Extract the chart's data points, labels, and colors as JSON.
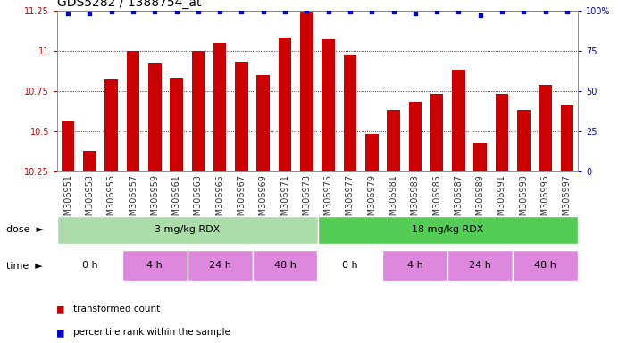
{
  "title": "GDS5282 / 1388754_at",
  "samples": [
    "GSM306951",
    "GSM306953",
    "GSM306955",
    "GSM306957",
    "GSM306959",
    "GSM306961",
    "GSM306963",
    "GSM306965",
    "GSM306967",
    "GSM306969",
    "GSM306971",
    "GSM306973",
    "GSM306975",
    "GSM306977",
    "GSM306979",
    "GSM306981",
    "GSM306983",
    "GSM306985",
    "GSM306987",
    "GSM306989",
    "GSM306991",
    "GSM306993",
    "GSM306995",
    "GSM306997"
  ],
  "bar_values": [
    10.56,
    10.38,
    10.82,
    11.0,
    10.92,
    10.83,
    11.0,
    11.05,
    10.93,
    10.85,
    11.08,
    11.24,
    11.07,
    10.97,
    10.48,
    10.63,
    10.68,
    10.73,
    10.88,
    10.43,
    10.73,
    10.63,
    10.79,
    10.66
  ],
  "percentile_values": [
    98,
    98,
    99,
    99,
    99,
    99,
    99,
    99,
    99,
    99,
    99,
    100,
    99,
    99,
    99,
    99,
    98,
    99,
    99,
    97,
    99,
    99,
    99,
    99
  ],
  "ylim_left": [
    10.25,
    11.25
  ],
  "ylim_right": [
    0,
    100
  ],
  "bar_color": "#cc0000",
  "dot_color": "#0000cc",
  "background_color": "#ffffff",
  "plot_bg_color": "#ffffff",
  "xticklabel_bg": "#dddddd",
  "dose_groups": [
    {
      "label": "3 mg/kg RDX",
      "start": 0,
      "end": 12,
      "color": "#aaddaa"
    },
    {
      "label": "18 mg/kg RDX",
      "start": 12,
      "end": 24,
      "color": "#55cc55"
    }
  ],
  "time_groups": [
    {
      "label": "0 h",
      "start": 0,
      "end": 3,
      "color": "#ffffff"
    },
    {
      "label": "4 h",
      "start": 3,
      "end": 6,
      "color": "#dd88dd"
    },
    {
      "label": "24 h",
      "start": 6,
      "end": 9,
      "color": "#dd88dd"
    },
    {
      "label": "48 h",
      "start": 9,
      "end": 12,
      "color": "#dd88dd"
    },
    {
      "label": "0 h",
      "start": 12,
      "end": 15,
      "color": "#ffffff"
    },
    {
      "label": "4 h",
      "start": 15,
      "end": 18,
      "color": "#dd88dd"
    },
    {
      "label": "24 h",
      "start": 18,
      "end": 21,
      "color": "#dd88dd"
    },
    {
      "label": "48 h",
      "start": 21,
      "end": 24,
      "color": "#dd88dd"
    }
  ],
  "legend_items": [
    {
      "label": "transformed count",
      "color": "#cc0000"
    },
    {
      "label": "percentile rank within the sample",
      "color": "#0000cc"
    }
  ],
  "yticks_left": [
    10.25,
    10.5,
    10.75,
    11.0,
    11.25
  ],
  "yticklabels_left": [
    "10.25",
    "10.5",
    "10.75",
    "11",
    "11.25"
  ],
  "yticks_right": [
    0,
    25,
    50,
    75,
    100
  ],
  "yticklabels_right": [
    "0",
    "25",
    "50",
    "75",
    "100%"
  ],
  "title_fontsize": 10,
  "tick_fontsize": 7,
  "label_fontsize": 8,
  "annot_fontsize": 8
}
